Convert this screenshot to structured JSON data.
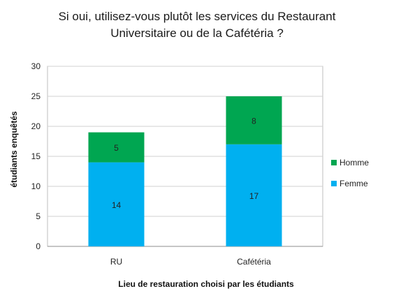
{
  "chart_data": {
    "type": "bar",
    "stacked": true,
    "title": [
      "Si oui, utilisez-vous plutôt les services du Restaurant",
      "Universitaire ou de la Cafétéria ?"
    ],
    "xlabel": "Lieu de restauration choisi par les étudiants",
    "ylabel": "étudiants enquêtés",
    "categories": [
      "RU",
      "Cafétéria"
    ],
    "ylim": [
      0,
      30
    ],
    "yticks": [
      0,
      5,
      10,
      15,
      20,
      25,
      30
    ],
    "grid": true,
    "legend_position": "right",
    "series": [
      {
        "name": "Femme",
        "values": [
          14,
          17
        ],
        "color": "#00b0f0"
      },
      {
        "name": "Homme",
        "values": [
          5,
          8
        ],
        "color": "#00a651"
      }
    ],
    "legend_order": [
      "Homme",
      "Femme"
    ]
  }
}
